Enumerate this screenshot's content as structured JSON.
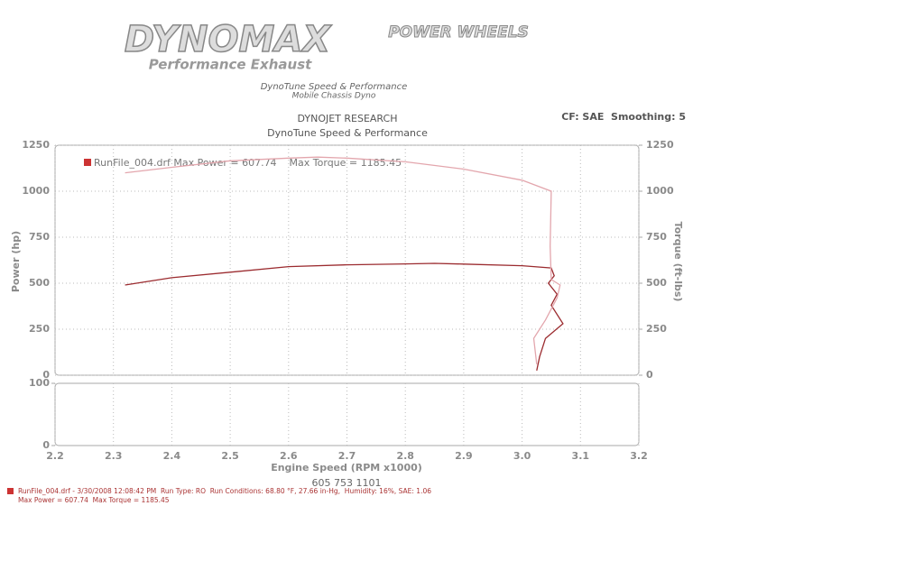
{
  "header": {
    "logo": "DYNOMAX",
    "logo_tagline": "Performance Exhaust",
    "partner_logo": "POWER WHEELS",
    "shop_line1": "DynoTune Speed & Performance",
    "shop_line2": "Mobile Chassis Dyno"
  },
  "chart_data": [
    {
      "type": "line",
      "title": "DYNOJET RESEARCH",
      "subtitle": "DynoTune Speed & Performance",
      "annotation": "CF: SAE  Smoothing: 5",
      "legend_text": "RunFile_004.drf Max Power = 607.74    Max Torque = 1185.45",
      "xlabel": "Engine Speed (RPM x1000)",
      "ylabel": "Power (hp)",
      "y2label": "Torque (ft-lbs)",
      "xlim": [
        2.2,
        3.2
      ],
      "xticks": [
        2.2,
        2.3,
        2.4,
        2.5,
        2.6,
        2.7,
        2.8,
        2.9,
        {
          "value": 3,
          "label": "3.0"
        },
        3.1,
        3.2
      ],
      "ylim": [
        0,
        1250
      ],
      "yticks": [
        0,
        250,
        500,
        750,
        1000,
        1250
      ],
      "y2lim": [
        0,
        1250
      ],
      "y2ticks": [
        0,
        250,
        500,
        750,
        1000,
        1250
      ],
      "grid": true,
      "series": [
        {
          "color": "#9b2b2f",
          "x": [
            2.32,
            2.4,
            2.5,
            2.6,
            2.7,
            2.8,
            2.85,
            2.9,
            3.0,
            3.05,
            3.055,
            3.045,
            3.06,
            3.05,
            3.07,
            3.04,
            3.03,
            3.025
          ],
          "values": [
            490,
            530,
            560,
            590,
            600,
            605,
            607.74,
            604,
            595,
            583,
            540,
            500,
            440,
            380,
            280,
            200,
            100,
            25
          ]
        },
        {
          "color": "#e3a6ad",
          "axis": "y2",
          "x": [
            2.32,
            2.4,
            2.5,
            2.6,
            2.65,
            2.7,
            2.8,
            2.9,
            3.0,
            3.05,
            3.048,
            3.05,
            3.065,
            3.06,
            3.04,
            3.02,
            3.025
          ],
          "values": [
            1100,
            1130,
            1165,
            1180,
            1185.45,
            1180,
            1160,
            1120,
            1060,
            1000,
            700,
            520,
            490,
            420,
            300,
            200,
            60
          ]
        }
      ]
    },
    {
      "type": "line",
      "ylim": [
        0,
        100
      ],
      "yticks": [
        0,
        100
      ],
      "grid": true
    }
  ],
  "phone": "605 753 1101",
  "footer": {
    "line1": "RunFile_004.drf - 3/30/2008 12:08:42 PM  Run Type: RO  Run Conditions: 68.80 °F, 27.66 in-Hg,  Humidity: 16%, SAE: 1.06",
    "line2": "Max Power = 607.74  Max Torque = 1185.45"
  }
}
